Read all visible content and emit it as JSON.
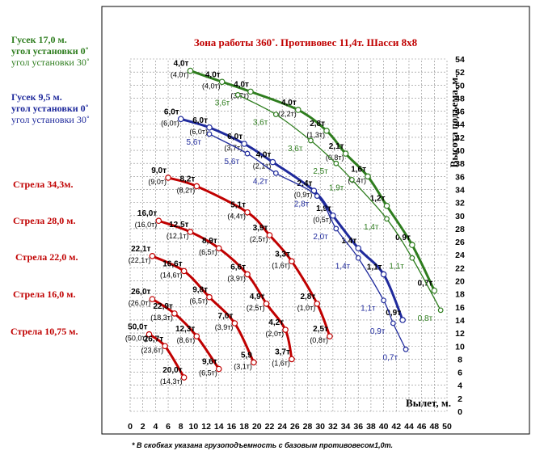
{
  "chart_data": {
    "type": "line",
    "title": "Зона работы 360˚. Противовес 11,4т. Шасси  8х8",
    "xlabel": "Вылет, м.",
    "ylabel": "Высота подъема, м.",
    "xlim": [
      0,
      50
    ],
    "ylim": [
      0,
      54
    ],
    "x_ticks": [
      0,
      2,
      4,
      6,
      8,
      10,
      12,
      14,
      16,
      18,
      20,
      22,
      24,
      26,
      28,
      30,
      32,
      34,
      36,
      38,
      40,
      42,
      44,
      46,
      48,
      50
    ],
    "y_ticks": [
      0,
      2,
      4,
      6,
      8,
      10,
      12,
      14,
      16,
      18,
      20,
      22,
      24,
      26,
      28,
      30,
      32,
      34,
      36,
      38,
      40,
      42,
      44,
      46,
      48,
      50,
      52,
      54
    ],
    "grid": true,
    "footnote": "* В скобках указана грузоподъемность с базовым противовесом1,0т.",
    "legend": [
      {
        "label": "Гусек 17,0 м.",
        "lines": [
          "угол установки 0˚",
          "угол установки 30˚"
        ],
        "color": "#2e7d1e"
      },
      {
        "label": "Гусек 9,5 м.",
        "lines": [
          "угол установки 0˚",
          "угол установки 30˚"
        ],
        "color": "#1f2a9c"
      },
      {
        "label": "Стрела 34,3м.",
        "lines": [],
        "color": "#c00000"
      },
      {
        "label": "Стрела 28,0 м.",
        "lines": [],
        "color": "#c00000"
      },
      {
        "label": "Стрела 22,0 м.",
        "lines": [],
        "color": "#c00000"
      },
      {
        "label": "Стрела 16,0 м.",
        "lines": [],
        "color": "#c00000"
      },
      {
        "label": "Стрела 10,75 м.",
        "lines": [],
        "color": "#c00000"
      }
    ],
    "series": [
      {
        "color": "#2e7d1e",
        "style": "thick",
        "points": [
          [
            9.5,
            52.2,
            "4,0т",
            "(4,0т)"
          ],
          [
            14.5,
            50.5,
            "4,0т",
            "(4,0т)"
          ],
          [
            19,
            49,
            "4,0т",
            "(3,7т)"
          ],
          [
            26.5,
            46.2,
            "4,0т",
            "(2,2т)"
          ],
          [
            31,
            43,
            "2,8т",
            "(1,3т)"
          ],
          [
            34,
            39.5,
            "2,1т",
            "(0,8т)"
          ],
          [
            37.5,
            36,
            "1,6т",
            "(0,4т)"
          ],
          [
            40.5,
            31.5,
            "1,2т",
            ""
          ],
          [
            44.5,
            25.5,
            "0,9т",
            ""
          ],
          [
            48,
            18.5,
            "0,7т",
            ""
          ]
        ]
      },
      {
        "color": "#2e7d1e",
        "style": "thin",
        "points": [
          [
            17,
            48.5,
            "3,6т",
            ""
          ],
          [
            23,
            45.5,
            "3,6т",
            ""
          ],
          [
            28.5,
            41.5,
            "3,6т",
            ""
          ],
          [
            32.5,
            38,
            "2,5т",
            ""
          ],
          [
            35,
            35.5,
            "1,9т",
            ""
          ],
          [
            40.5,
            29.5,
            "1,4т",
            ""
          ],
          [
            44.5,
            23.5,
            "1,1т",
            ""
          ],
          [
            49,
            15.5,
            "0,8т",
            ""
          ]
        ]
      },
      {
        "color": "#1f2a9c",
        "style": "thick",
        "points": [
          [
            8,
            44.8,
            "6,0т",
            "(6,0т)"
          ],
          [
            12.5,
            43.5,
            "6,0т",
            "(6,0т)"
          ],
          [
            18,
            41,
            "6,0т",
            "(3,7т)"
          ],
          [
            22.5,
            38.2,
            "4,0т",
            "(2,1т)"
          ],
          [
            29,
            33.8,
            "2,4т",
            "(0,9т)"
          ],
          [
            32,
            30,
            "1,9т",
            "(0,5т)"
          ],
          [
            36,
            25,
            "1,4т",
            ""
          ],
          [
            40,
            21,
            "1,1т",
            ""
          ],
          [
            43,
            14,
            "0,9т",
            ""
          ]
        ]
      },
      {
        "color": "#1f2a9c",
        "style": "thin",
        "points": [
          [
            12.5,
            42.5,
            "5,6т",
            ""
          ],
          [
            18.5,
            39.5,
            "5,6т",
            ""
          ],
          [
            23,
            36.5,
            "4,2т",
            ""
          ],
          [
            29.5,
            33,
            "2,8т",
            ""
          ],
          [
            32.5,
            28,
            "2,0т",
            ""
          ],
          [
            36,
            23.5,
            "1,4т",
            ""
          ],
          [
            40,
            17,
            "1,1т",
            ""
          ],
          [
            41.5,
            13.5,
            "0,9т",
            ""
          ],
          [
            43.5,
            9.5,
            "0,7т",
            ""
          ]
        ]
      },
      {
        "color": "#c00000",
        "style": "thick",
        "name": "Стрела 34,3м.",
        "points": [
          [
            6,
            35.8,
            "9,0т",
            "(9,0т)"
          ],
          [
            10.5,
            34.5,
            "8,2т",
            "(8,2т)"
          ],
          [
            18.5,
            30.5,
            "5,1т",
            "(4,4т)"
          ],
          [
            22,
            27,
            "3,9т",
            "(2,5т)"
          ],
          [
            25.5,
            23,
            "3,3т",
            "(1,6т)"
          ],
          [
            29.5,
            16.5,
            "2,8т",
            "(1,0т)"
          ],
          [
            31.5,
            11.5,
            "2,5т",
            "(0,8т)"
          ]
        ]
      },
      {
        "color": "#c00000",
        "style": "thick",
        "name": "Стрела 28,0 м.",
        "points": [
          [
            4.5,
            29.2,
            "16,0т",
            "(16,0т)"
          ],
          [
            9.5,
            27.5,
            "12,5т",
            "(12,1т)"
          ],
          [
            14,
            25,
            "8,9т",
            "(6,5т)"
          ],
          [
            18.5,
            21,
            "6,6т",
            "(3,9т)"
          ],
          [
            21.5,
            16.5,
            "4,9т",
            "(2,5т)"
          ],
          [
            24.5,
            12.5,
            "4,2т",
            "(2,0т)"
          ],
          [
            25.5,
            8,
            "3,7т",
            "(1,6т)"
          ]
        ]
      },
      {
        "color": "#c00000",
        "style": "thick",
        "name": "Стрела 22,0 м.",
        "points": [
          [
            3.5,
            23.8,
            "22,1т",
            "(22,1т)"
          ],
          [
            8.5,
            21.5,
            "16,6т",
            "(14,6т)"
          ],
          [
            12.5,
            17.5,
            "9,8т",
            "(6,5т)"
          ],
          [
            16.5,
            13.5,
            "7,0т",
            "(3,9т)"
          ],
          [
            19.5,
            7.5,
            "5,9",
            "(3,1т)"
          ]
        ]
      },
      {
        "color": "#c00000",
        "style": "thick",
        "name": "Стрела 16,0 м.",
        "points": [
          [
            3.5,
            17.2,
            "26,0т",
            "(26,0т)"
          ],
          [
            7,
            15,
            "22,9т",
            "(18,3т)"
          ],
          [
            10.5,
            11.5,
            "12,3т",
            "(8,6т)"
          ],
          [
            14,
            6.5,
            "9,6т",
            "(6,5т)"
          ]
        ]
      },
      {
        "color": "#c00000",
        "style": "thick",
        "name": "Стрела 10,75 м.",
        "points": [
          [
            3,
            11.8,
            "50,0т",
            "(50,0т)"
          ],
          [
            5.5,
            10,
            "26,7т",
            "(23,6т)"
          ],
          [
            8.5,
            5.2,
            "20,0т",
            "(14,3т)"
          ]
        ]
      }
    ]
  }
}
